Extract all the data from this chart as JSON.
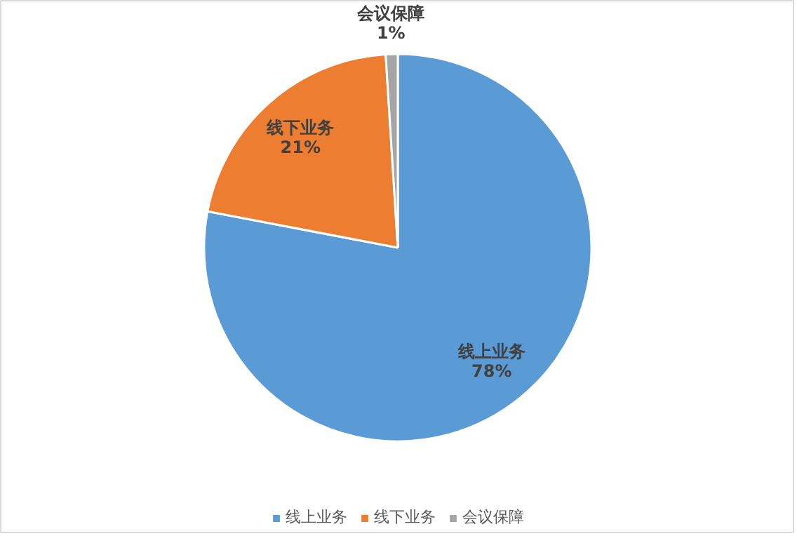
{
  "chart_data": {
    "type": "pie",
    "categories": [
      "线上业务",
      "线下业务",
      "会议保障"
    ],
    "values": [
      78,
      21,
      1
    ],
    "colors": [
      "#5b9bd5",
      "#ed7d31",
      "#a5a5a5"
    ],
    "value_labels": [
      "78%",
      "21%",
      "1%"
    ],
    "legend": "bottom"
  }
}
